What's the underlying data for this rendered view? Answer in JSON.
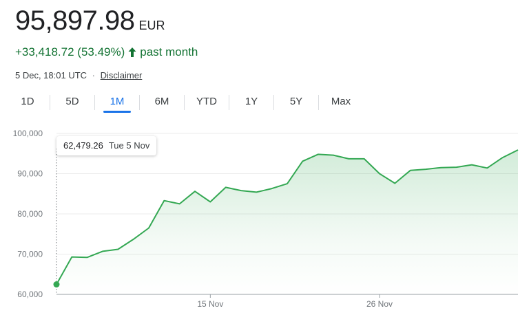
{
  "quote": {
    "price": "95,897.98",
    "currency": "EUR",
    "change": "+33,418.72 (53.49%)",
    "change_period": "past month",
    "timestamp": "5 Dec, 18:01 UTC",
    "separator": "·",
    "disclaimer": "Disclaimer"
  },
  "tabs": [
    {
      "label": "1D",
      "active": false
    },
    {
      "label": "5D",
      "active": false
    },
    {
      "label": "1M",
      "active": true
    },
    {
      "label": "6M",
      "active": false
    },
    {
      "label": "YTD",
      "active": false
    },
    {
      "label": "1Y",
      "active": false
    },
    {
      "label": "5Y",
      "active": false
    },
    {
      "label": "Max",
      "active": false
    }
  ],
  "tooltip": {
    "value": "62,479.26",
    "date": "Tue 5 Nov"
  },
  "colors": {
    "line": "#34a853",
    "up": "#137333",
    "accent": "#1a73e8"
  },
  "icons": {
    "change_arrow": "arrow-up-icon"
  },
  "chart_data": {
    "type": "area",
    "x": [
      "2024-11-05",
      "2024-11-06",
      "2024-11-07",
      "2024-11-08",
      "2024-11-09",
      "2024-11-10",
      "2024-11-11",
      "2024-11-12",
      "2024-11-13",
      "2024-11-14",
      "2024-11-15",
      "2024-11-16",
      "2024-11-17",
      "2024-11-18",
      "2024-11-19",
      "2024-11-20",
      "2024-11-21",
      "2024-11-22",
      "2024-11-23",
      "2024-11-24",
      "2024-11-25",
      "2024-11-26",
      "2024-11-27",
      "2024-11-28",
      "2024-11-29",
      "2024-11-30",
      "2024-12-01",
      "2024-12-02",
      "2024-12-03",
      "2024-12-04",
      "2024-12-05"
    ],
    "series": [
      {
        "values": [
          62479.26,
          69300,
          69200,
          70700,
          71200,
          73700,
          76500,
          83300,
          82500,
          85600,
          83000,
          86600,
          85800,
          85400,
          86300,
          87500,
          93100,
          94800,
          94600,
          93700,
          93700,
          90000,
          87600,
          90800,
          91100,
          91500,
          91600,
          92200,
          91400,
          94000,
          95897.98
        ]
      }
    ],
    "x_ticks": [
      {
        "x": "2024-11-15",
        "label": "15 Nov"
      },
      {
        "x": "2024-11-26",
        "label": "26 Nov"
      }
    ],
    "y_ticks": [
      {
        "y": 60000,
        "label": "60,000"
      },
      {
        "y": 70000,
        "label": "70,000"
      },
      {
        "y": 80000,
        "label": "80,000"
      },
      {
        "y": 90000,
        "label": "90,000"
      },
      {
        "y": 100000,
        "label": "100,000"
      }
    ],
    "ylim": [
      60000,
      100000
    ],
    "grid": true,
    "legend": "none",
    "highlighted_point": {
      "x": "2024-11-05",
      "y": 62479.26
    }
  }
}
